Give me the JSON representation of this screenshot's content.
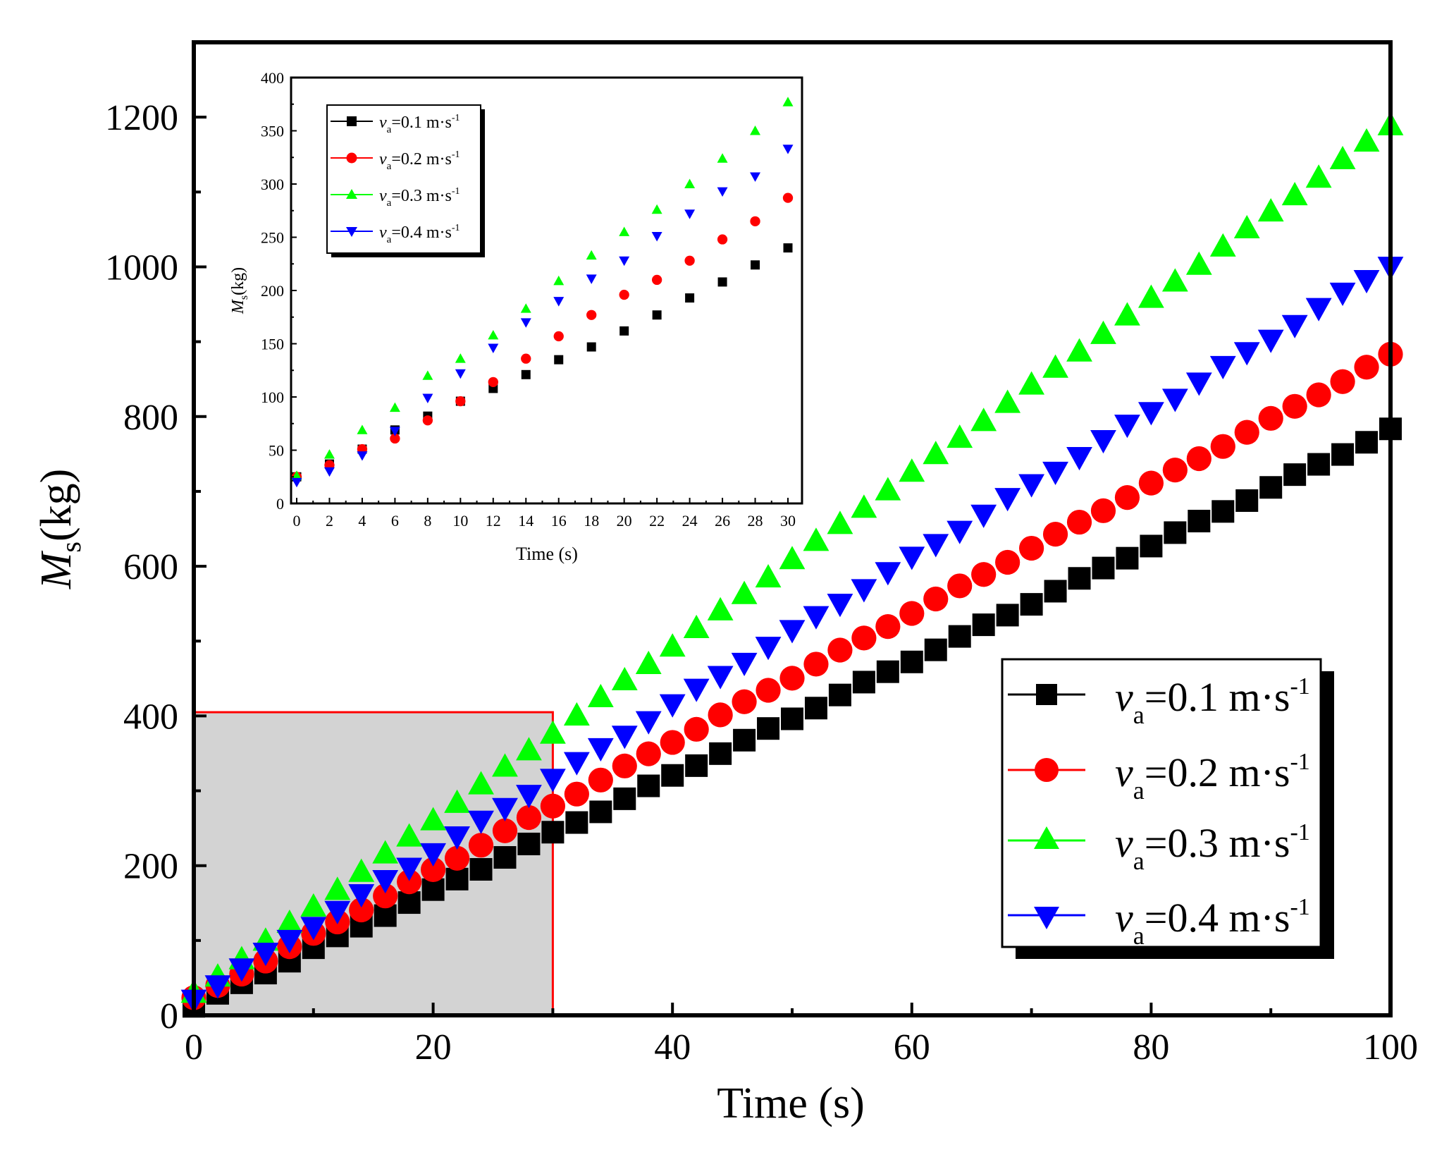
{
  "colors": {
    "s1": "#000000",
    "s2": "#ff0000",
    "s3": "#00ff00",
    "s4": "#0000ff",
    "highlight_fill": "#d3d3d3",
    "highlight_stroke": "#ff0000"
  },
  "chart_data": [
    {
      "id": "main",
      "type": "scatter",
      "title": "",
      "xlabel": "Time (s)",
      "ylabel_main": "M",
      "ylabel_sub": "s",
      "ylabel_unit": "(kg)",
      "xlim": [
        0,
        100
      ],
      "ylim": [
        0,
        1300
      ],
      "xticks": [
        0,
        20,
        40,
        60,
        80,
        100
      ],
      "yticks": [
        0,
        200,
        400,
        600,
        800,
        1000,
        1200
      ],
      "xtick_labels": [
        "0",
        "20",
        "40",
        "60",
        "80",
        "100"
      ],
      "ytick_labels": [
        "0",
        "200",
        "400",
        "600",
        "800",
        "1000",
        "1200"
      ],
      "grid": false,
      "legend_position": "bottom-right",
      "highlight_region": {
        "x": [
          0,
          30
        ],
        "y": [
          0,
          405
        ]
      },
      "series": [
        {
          "name": "v_a=0.1 m·s^-1",
          "marker": "square",
          "legend_sym": "v",
          "legend_sub": "a",
          "legend_text": "=0.1 m·s",
          "legend_sup": "-1",
          "slope": 7.7,
          "intercept": 12,
          "bias": 0.5
        },
        {
          "name": "v_a=0.2 m·s^-1",
          "marker": "circle",
          "legend_sym": "v",
          "legend_sub": "a",
          "legend_text": "=0.2 m·s",
          "legend_sup": "-1",
          "slope": 8.6,
          "intercept": 22,
          "bias": 0.4
        },
        {
          "name": "v_a=0.3 m·s^-1",
          "marker": "triangle-up",
          "legend_sym": "v",
          "legend_sub": "a",
          "legend_text": "=0.3 m·s",
          "legend_sup": "-1",
          "slope": 11.6,
          "intercept": 30,
          "bias": 0.3
        },
        {
          "name": "v_a=0.4 m·s^-1",
          "marker": "triangle-down",
          "legend_sym": "v",
          "legend_sub": "a",
          "legend_text": "=0.4 m·s",
          "legend_sup": "-1",
          "slope": 9.8,
          "intercept": 22,
          "bias": 0.6
        }
      ]
    },
    {
      "id": "inset",
      "type": "scatter",
      "title": "",
      "xlabel": "Time (s)",
      "ylabel_main": "M",
      "ylabel_sub": "s",
      "ylabel_unit": "(kg)",
      "xlim": [
        0,
        30
      ],
      "ylim": [
        0,
        400
      ],
      "xticks": [
        0,
        2,
        4,
        6,
        8,
        10,
        12,
        14,
        16,
        18,
        20,
        22,
        24,
        26,
        28,
        30
      ],
      "yticks": [
        0,
        50,
        100,
        150,
        200,
        250,
        300,
        350,
        400
      ],
      "xtick_labels": [
        "0",
        "2",
        "4",
        "6",
        "8",
        "10",
        "12",
        "14",
        "16",
        "18",
        "20",
        "22",
        "24",
        "26",
        "28",
        "30"
      ],
      "ytick_labels": [
        "0",
        "50",
        "100",
        "150",
        "200",
        "250",
        "300",
        "350",
        "400"
      ],
      "grid": false,
      "legend_position": "top-left",
      "series": [
        {
          "name": "v_a=0.1 m·s^-1",
          "marker": "square",
          "legend_sym": "v",
          "legend_sub": "a",
          "legend_text": "=0.1 m·s",
          "legend_sup": "-1",
          "x": [
            0,
            2,
            4,
            6,
            8,
            10,
            12,
            14,
            16,
            18,
            20,
            22,
            24,
            26,
            28,
            30
          ],
          "values": [
            25,
            37,
            51,
            69,
            82,
            96,
            108,
            121,
            135,
            147,
            162,
            177,
            193,
            208,
            224,
            240
          ]
        },
        {
          "name": "v_a=0.2 m·s^-1",
          "marker": "circle",
          "legend_sym": "v",
          "legend_sub": "a",
          "legend_text": "=0.2 m·s",
          "legend_sup": "-1",
          "x": [
            0,
            2,
            4,
            6,
            8,
            10,
            12,
            14,
            16,
            18,
            20,
            22,
            24,
            26,
            28,
            30
          ],
          "values": [
            25,
            36,
            51,
            61,
            78,
            96,
            114,
            136,
            157,
            177,
            196,
            210,
            228,
            248,
            265,
            287
          ]
        },
        {
          "name": "v_a=0.3 m·s^-1",
          "marker": "triangle-up",
          "legend_sym": "v",
          "legend_sub": "a",
          "legend_text": "=0.3 m·s",
          "legend_sup": "-1",
          "x": [
            0,
            2,
            4,
            6,
            8,
            10,
            12,
            14,
            16,
            18,
            20,
            22,
            24,
            26,
            28,
            30
          ],
          "values": [
            26,
            46,
            69,
            90,
            120,
            136,
            158,
            183,
            209,
            233,
            255,
            276,
            300,
            324,
            350,
            377
          ]
        },
        {
          "name": "v_a=0.4 m·s^-1",
          "marker": "triangle-down",
          "legend_sym": "v",
          "legend_sub": "a",
          "legend_text": "=0.4 m·s",
          "legend_sup": "-1",
          "x": [
            0,
            2,
            4,
            6,
            8,
            10,
            12,
            14,
            16,
            18,
            20,
            22,
            24,
            26,
            28,
            30
          ],
          "values": [
            20,
            30,
            45,
            68,
            99,
            122,
            146,
            170,
            190,
            211,
            228,
            251,
            272,
            293,
            307,
            333
          ]
        }
      ]
    }
  ]
}
